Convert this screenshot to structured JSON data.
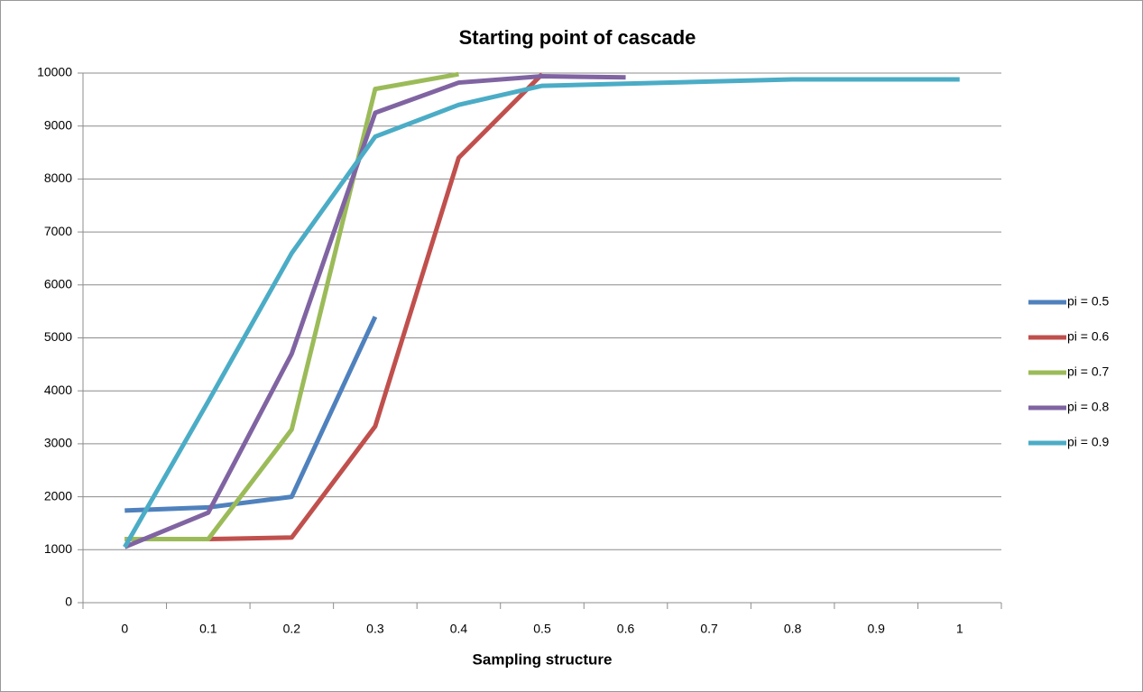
{
  "chart_data": {
    "type": "line",
    "title": "Starting point of cascade",
    "x_label": "Sampling structure",
    "categories": [
      "0",
      "0.1",
      "0.2",
      "0.3",
      "0.4",
      "0.5",
      "0.6",
      "0.7",
      "0.8",
      "0.9",
      "1"
    ],
    "series": [
      {
        "name": "pi = 0.5",
        "color": "#4f81bd",
        "values": [
          1740,
          1800,
          2000,
          5400,
          null,
          null,
          null,
          null,
          null,
          null,
          null
        ]
      },
      {
        "name": "pi = 0.6",
        "color": "#c0504d",
        "values": [
          1200,
          1200,
          1230,
          3330,
          8400,
          9980,
          null,
          null,
          null,
          null,
          null
        ]
      },
      {
        "name": "pi = 0.7",
        "color": "#9bbb59",
        "values": [
          1200,
          1200,
          3270,
          9700,
          9980,
          null,
          null,
          null,
          null,
          null,
          null
        ]
      },
      {
        "name": "pi = 0.8",
        "color": "#8064a2",
        "values": [
          1050,
          1700,
          4700,
          9250,
          9820,
          9940,
          9920,
          null,
          null,
          null,
          null
        ]
      },
      {
        "name": "pi = 0.9",
        "color": "#4bacc6",
        "values": [
          1050,
          3800,
          6600,
          8800,
          9400,
          9760,
          9800,
          9840,
          9880,
          9880,
          9880
        ]
      }
    ],
    "ylim": [
      0,
      10000
    ],
    "yticks": [
      0,
      1000,
      2000,
      3000,
      4000,
      5000,
      6000,
      7000,
      8000,
      9000,
      10000
    ],
    "grid": true,
    "legend": "right"
  }
}
